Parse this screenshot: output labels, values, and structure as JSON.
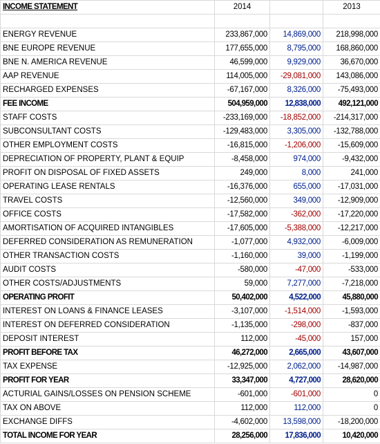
{
  "header": {
    "title": "INCOME STATEMENT",
    "year_2014": "2014",
    "year_2013": "2013"
  },
  "rows": [
    {
      "label": "ENERGY REVENUE",
      "y2014": "233,867,000",
      "change": "14,869,000",
      "y2013": "218,998,000"
    },
    {
      "label": "BNE EUROPE REVENUE",
      "y2014": "177,655,000",
      "change": "8,795,000",
      "y2013": "168,860,000"
    },
    {
      "label": "BNE N. AMERICA REVENUE",
      "y2014": "46,599,000",
      "change": "9,929,000",
      "y2013": "36,670,000"
    },
    {
      "label": "AAP REVENUE",
      "y2014": "114,005,000",
      "change": "-29,081,000",
      "y2013": "143,086,000"
    },
    {
      "label": "RECHARGED EXPENSES",
      "y2014": "-67,167,000",
      "change": "8,326,000",
      "y2013": "-75,493,000"
    },
    {
      "label": "FEE INCOME",
      "y2014": "504,959,000",
      "change": "12,838,000",
      "y2013": "492,121,000",
      "bold": true
    },
    {
      "label": "STAFF COSTS",
      "y2014": "-233,169,000",
      "change": "-18,852,000",
      "y2013": "-214,317,000"
    },
    {
      "label": "SUBCONSULTANT COSTS",
      "y2014": "-129,483,000",
      "change": "3,305,000",
      "y2013": "-132,788,000"
    },
    {
      "label": "OTHER EMPLOYMENT COSTS",
      "y2014": "-16,815,000",
      "change": "-1,206,000",
      "y2013": "-15,609,000"
    },
    {
      "label": "DEPRECIATION OF PROPERTY, PLANT & EQUIP",
      "y2014": "-8,458,000",
      "change": "974,000",
      "y2013": "-9,432,000"
    },
    {
      "label": "PROFIT ON DISPOSAL OF FIXED ASSETS",
      "y2014": "249,000",
      "change": "8,000",
      "y2013": "241,000"
    },
    {
      "label": "OPERATING LEASE RENTALS",
      "y2014": "-16,376,000",
      "change": "655,000",
      "y2013": "-17,031,000"
    },
    {
      "label": "TRAVEL COSTS",
      "y2014": "-12,560,000",
      "change": "349,000",
      "y2013": "-12,909,000"
    },
    {
      "label": "OFFICE COSTS",
      "y2014": "-17,582,000",
      "change": "-362,000",
      "y2013": "-17,220,000"
    },
    {
      "label": "AMORTISATION OF ACQUIRED INTANGIBLES",
      "y2014": "-17,605,000",
      "change": "-5,388,000",
      "y2013": "-12,217,000"
    },
    {
      "label": "DEFERRED CONSIDERATION AS REMUNERATION",
      "y2014": "-1,077,000",
      "change": "4,932,000",
      "y2013": "-6,009,000"
    },
    {
      "label": "OTHER TRANSACTION COSTS",
      "y2014": "-1,160,000",
      "change": "39,000",
      "y2013": "-1,199,000"
    },
    {
      "label": "AUDIT COSTS",
      "y2014": "-580,000",
      "change": "-47,000",
      "y2013": "-533,000"
    },
    {
      "label": "OTHER COSTS/ADJUSTMENTS",
      "y2014": "59,000",
      "change": "7,277,000",
      "y2013": "-7,218,000"
    },
    {
      "label": "OPERATING PROFIT",
      "y2014": "50,402,000",
      "change": "4,522,000",
      "y2013": "45,880,000",
      "bold": true
    },
    {
      "label": "INTEREST ON LOANS & FINANCE LEASES",
      "y2014": "-3,107,000",
      "change": "-1,514,000",
      "y2013": "-1,593,000"
    },
    {
      "label": "INTEREST ON DEFERRED CONSIDERATION",
      "y2014": "-1,135,000",
      "change": "-298,000",
      "y2013": "-837,000"
    },
    {
      "label": "DEPOSIT INTEREST",
      "y2014": "112,000",
      "change": "-45,000",
      "y2013": "157,000"
    },
    {
      "label": "PROFIT BEFORE TAX",
      "y2014": "46,272,000",
      "change": "2,665,000",
      "y2013": "43,607,000",
      "bold": true
    },
    {
      "label": "TAX EXPENSE",
      "y2014": "-12,925,000",
      "change": "2,062,000",
      "y2013": "-14,987,000"
    },
    {
      "label": "PROFIT FOR YEAR",
      "y2014": "33,347,000",
      "change": "4,727,000",
      "y2013": "28,620,000",
      "bold": true
    },
    {
      "label": "ACTURIAL GAINS/LOSSES ON PENSION SCHEME",
      "y2014": "-601,000",
      "change": "-601,000",
      "y2013": "0"
    },
    {
      "label": "TAX ON ABOVE",
      "y2014": "112,000",
      "change": "112,000",
      "y2013": "0"
    },
    {
      "label": "EXCHANGE DIFFS",
      "y2014": "-4,602,000",
      "change": "13,598,000",
      "y2013": "-18,200,000"
    },
    {
      "label": "TOTAL INCOME FOR YEAR",
      "y2014": "28,256,000",
      "change": "17,836,000",
      "y2013": "10,420,000",
      "bold": true
    }
  ]
}
